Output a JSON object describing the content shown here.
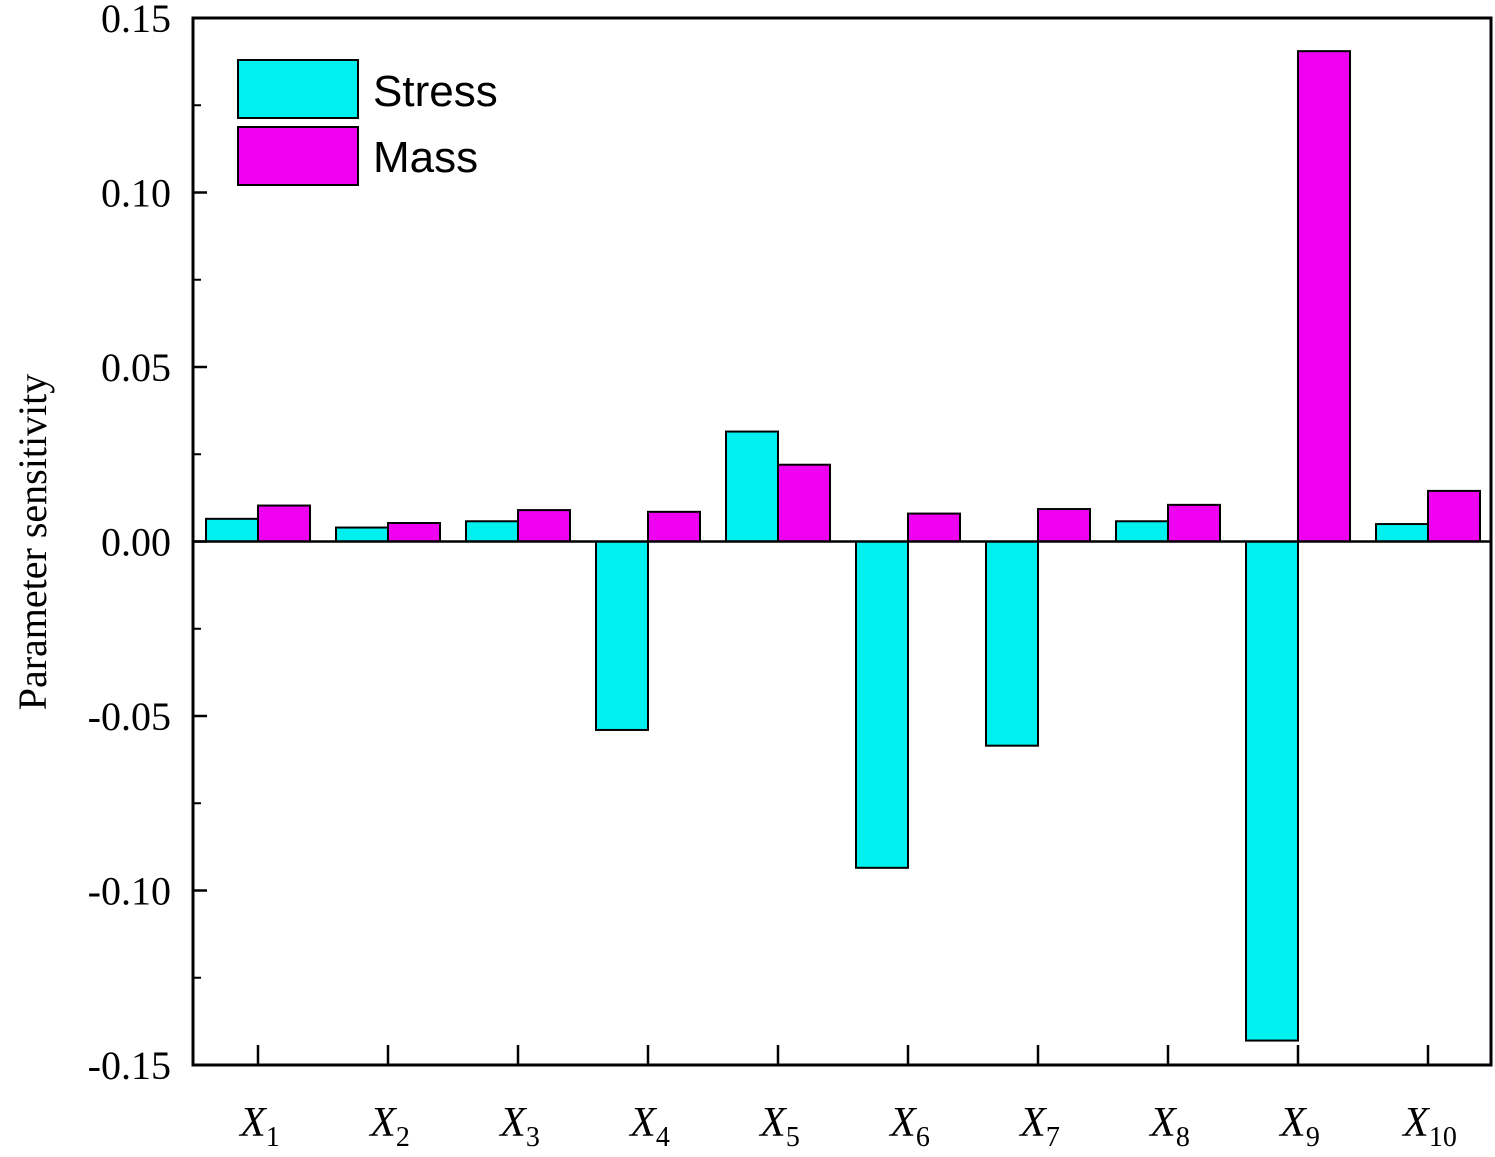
{
  "chart_data": {
    "type": "bar",
    "title": "",
    "xlabel": "",
    "ylabel": "Parameter sensitivity",
    "ylim": [
      -0.15,
      0.15
    ],
    "yticks": [
      "-0.15",
      "-0.10",
      "-0.05",
      "0.00",
      "0.05",
      "0.10",
      "0.15"
    ],
    "yticks_values": [
      -0.15,
      -0.1,
      -0.05,
      0.0,
      0.05,
      0.1,
      0.15
    ],
    "categories": [
      "X1",
      "X2",
      "X3",
      "X4",
      "X5",
      "X6",
      "X7",
      "X8",
      "X9",
      "X10"
    ],
    "category_labels": [
      {
        "base": "X",
        "sub": "1"
      },
      {
        "base": "X",
        "sub": "2"
      },
      {
        "base": "X",
        "sub": "3"
      },
      {
        "base": "X",
        "sub": "4"
      },
      {
        "base": "X",
        "sub": "5"
      },
      {
        "base": "X",
        "sub": "6"
      },
      {
        "base": "X",
        "sub": "7"
      },
      {
        "base": "X",
        "sub": "8"
      },
      {
        "base": "X",
        "sub": "9"
      },
      {
        "base": "X",
        "sub": "10"
      }
    ],
    "series": [
      {
        "name": "Stress",
        "color": "#00F0F0",
        "values": [
          0.0065,
          0.004,
          0.0058,
          -0.054,
          0.0315,
          -0.0935,
          -0.0585,
          0.0058,
          -0.143,
          0.005
        ]
      },
      {
        "name": "Mass",
        "color": "#F000F0",
        "values": [
          0.0103,
          0.0053,
          0.009,
          0.0085,
          0.022,
          0.008,
          0.0093,
          0.0105,
          0.1405,
          0.0145
        ]
      }
    ],
    "legend_position": "top-left",
    "grid": false
  }
}
